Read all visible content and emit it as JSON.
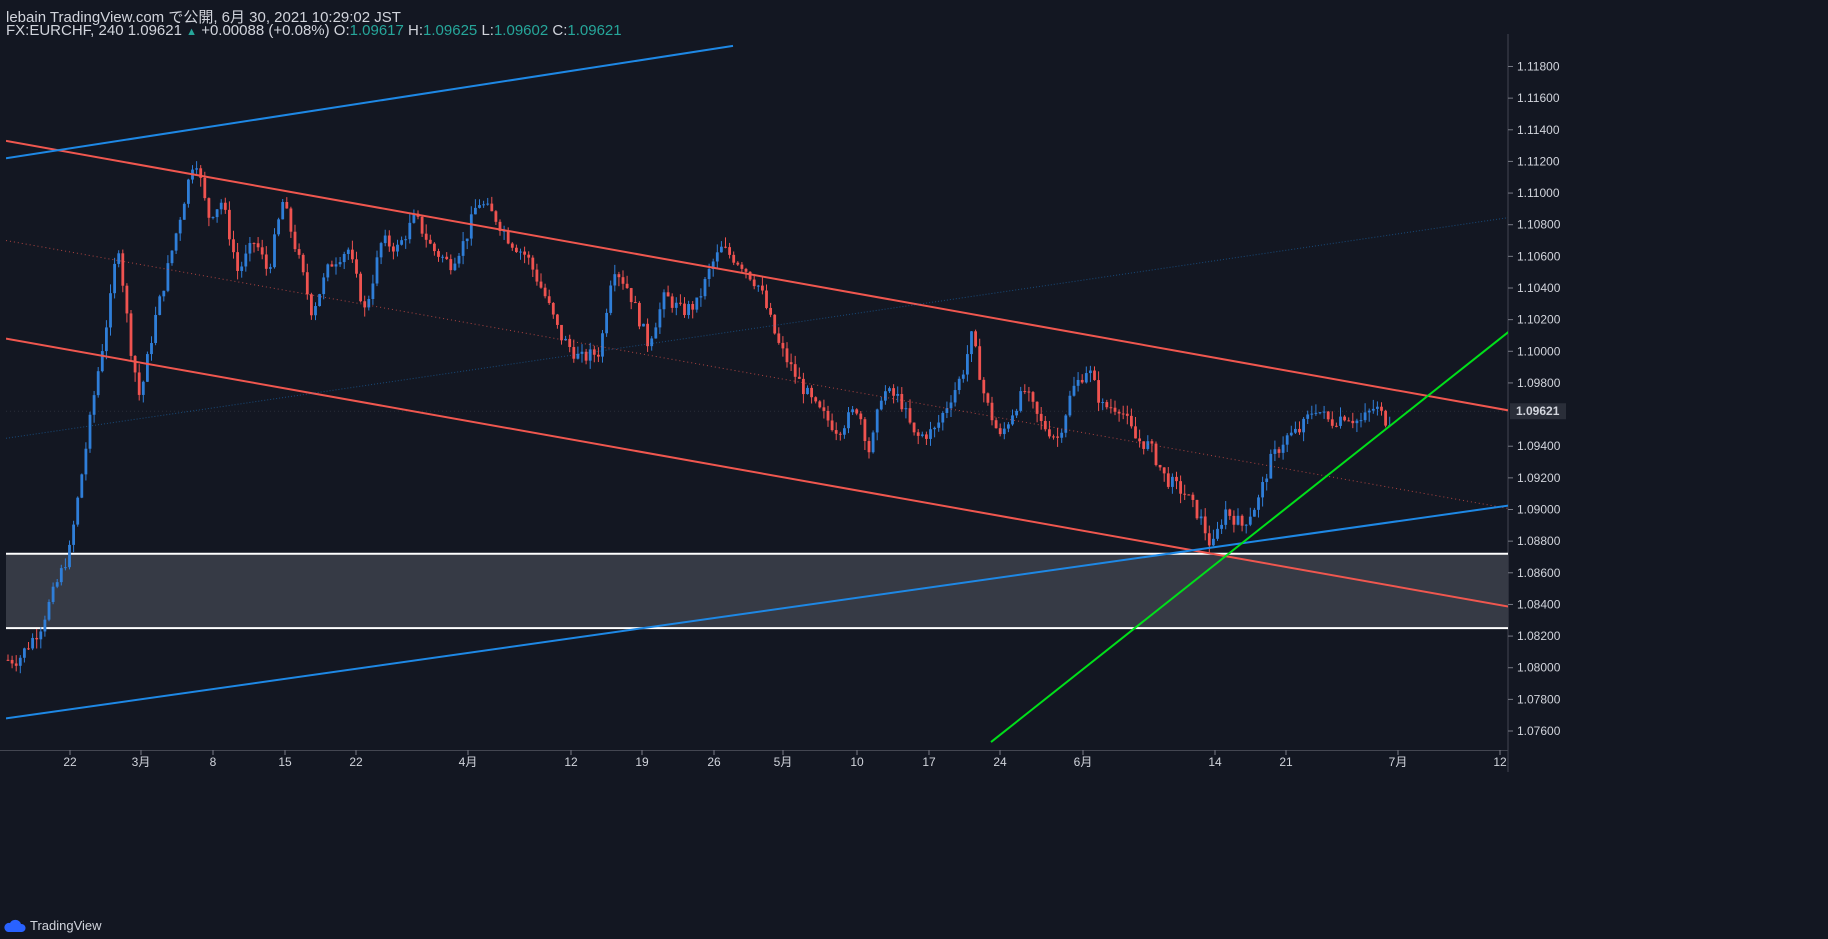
{
  "header": {
    "line1": "lebain TradingView.com で公開, 6月 30, 2021 10:29:02 JST",
    "symbol": "FX:EURCHF, 240",
    "last": "1.09621",
    "change": "+0.00088 (+0.08%)",
    "o_label": "O:",
    "o_value": "1.09617",
    "h_label": "H:",
    "h_value": "1.09625",
    "l_label": "L:",
    "l_value": "1.09602",
    "c_label": "C:",
    "c_value": "1.09621"
  },
  "footer": {
    "brand": "TradingView"
  },
  "colors": {
    "background": "#131722",
    "up": "#2f7ed8",
    "down": "#ef5350",
    "channel_red": "#f0574f",
    "trend_blue": "#1e88e5",
    "trend_green": "#00e01a",
    "zone": "#363a45",
    "zone_edge": "#ffffff",
    "price_tag": "#2a2e39"
  },
  "chart_data": {
    "type": "candlestick",
    "symbol": "FX:EURCHF",
    "timeframe": "240",
    "ylim": [
      1.0748,
      1.1198
    ],
    "y_ticks": [
      "1.11800",
      "1.11600",
      "1.11400",
      "1.11200",
      "1.11000",
      "1.10800",
      "1.10600",
      "1.10400",
      "1.10200",
      "1.10000",
      "1.09800",
      "1.09621",
      "1.09400",
      "1.09200",
      "1.09000",
      "1.08800",
      "1.08600",
      "1.08400",
      "1.08200",
      "1.08000",
      "1.07800",
      "1.07600"
    ],
    "last_price": "1.09621",
    "x_ticks": [
      "22",
      "3月",
      "8",
      "15",
      "22",
      "4月",
      "12",
      "19",
      "26",
      "5月",
      "10",
      "17",
      "24",
      "6月",
      "14",
      "21",
      "7月",
      "12"
    ],
    "path_anchors": [
      [
        0,
        1.0805
      ],
      [
        18,
        1.0805
      ],
      [
        40,
        1.0825
      ],
      [
        70,
        1.0875
      ],
      [
        96,
        1.098
      ],
      [
        110,
        1.103
      ],
      [
        118,
        1.107
      ],
      [
        130,
        1.1005
      ],
      [
        140,
        1.097
      ],
      [
        155,
        1.102
      ],
      [
        165,
        1.1045
      ],
      [
        180,
        1.1085
      ],
      [
        195,
        1.1125
      ],
      [
        208,
        1.1085
      ],
      [
        222,
        1.1095
      ],
      [
        238,
        1.105
      ],
      [
        255,
        1.107
      ],
      [
        268,
        1.105
      ],
      [
        283,
        1.1095
      ],
      [
        298,
        1.106
      ],
      [
        312,
        1.1025
      ],
      [
        330,
        1.1055
      ],
      [
        348,
        1.1065
      ],
      [
        365,
        1.1025
      ],
      [
        382,
        1.107
      ],
      [
        398,
        1.1065
      ],
      [
        415,
        1.1085
      ],
      [
        432,
        1.1065
      ],
      [
        450,
        1.1055
      ],
      [
        465,
        1.107
      ],
      [
        478,
        1.1095
      ],
      [
        495,
        1.1085
      ],
      [
        510,
        1.107
      ],
      [
        527,
        1.106
      ],
      [
        545,
        1.1035
      ],
      [
        560,
        1.101
      ],
      [
        580,
        1.0995
      ],
      [
        600,
        1.1
      ],
      [
        613,
        1.1055
      ],
      [
        628,
        1.104
      ],
      [
        648,
        1.1005
      ],
      [
        665,
        1.1035
      ],
      [
        682,
        1.1025
      ],
      [
        697,
        1.103
      ],
      [
        712,
        1.1055
      ],
      [
        722,
        1.1065
      ],
      [
        742,
        1.1055
      ],
      [
        760,
        1.104
      ],
      [
        778,
        1.1005
      ],
      [
        795,
        1.0985
      ],
      [
        815,
        1.0965
      ],
      [
        838,
        1.095
      ],
      [
        858,
        1.0965
      ],
      [
        870,
        1.0935
      ],
      [
        882,
        1.0975
      ],
      [
        900,
        1.097
      ],
      [
        915,
        1.0945
      ],
      [
        935,
        1.095
      ],
      [
        950,
        1.097
      ],
      [
        962,
        1.0985
      ],
      [
        972,
        1.101
      ],
      [
        985,
        1.097
      ],
      [
        1000,
        1.0945
      ],
      [
        1015,
        1.0965
      ],
      [
        1025,
        1.0975
      ],
      [
        1040,
        1.0955
      ],
      [
        1058,
        1.0945
      ],
      [
        1072,
        1.0975
      ],
      [
        1088,
        1.099
      ],
      [
        1102,
        1.0965
      ],
      [
        1120,
        1.0965
      ],
      [
        1135,
        1.0945
      ],
      [
        1150,
        1.094
      ],
      [
        1165,
        1.092
      ],
      [
        1185,
        1.091
      ],
      [
        1200,
        1.0895
      ],
      [
        1212,
        1.0875
      ],
      [
        1225,
        1.09
      ],
      [
        1242,
        1.089
      ],
      [
        1258,
        1.0905
      ],
      [
        1270,
        1.093
      ],
      [
        1285,
        1.0945
      ],
      [
        1300,
        1.095
      ],
      [
        1315,
        1.0965
      ],
      [
        1330,
        1.0955
      ],
      [
        1345,
        1.096
      ],
      [
        1360,
        1.0955
      ],
      [
        1375,
        1.0965
      ],
      [
        1388,
        1.0955
      ],
      [
        1393,
        1.0962
      ]
    ],
    "drawings": [
      {
        "kind": "channel-upper",
        "color": "red",
        "from": [
          0,
          1.1133
        ],
        "to": [
          1508,
          1.0962
        ]
      },
      {
        "kind": "channel-lower",
        "color": "red",
        "from": [
          0,
          1.1008
        ],
        "to": [
          1508,
          1.0838
        ]
      },
      {
        "kind": "channel-mid",
        "color": "red",
        "style": "dotted",
        "from": [
          0,
          1.107
        ],
        "to": [
          1508,
          1.09
        ]
      },
      {
        "kind": "trend-upper",
        "color": "blue",
        "from": [
          0,
          1.1122
        ],
        "to": [
          727,
          1.1193
        ]
      },
      {
        "kind": "trend-lower",
        "color": "blue",
        "from": [
          0,
          1.0768
        ],
        "to": [
          1508,
          1.0903
        ]
      },
      {
        "kind": "trend-mid",
        "color": "blue",
        "style": "faint",
        "from": [
          0,
          1.0945
        ],
        "to": [
          1508,
          1.1085
        ]
      },
      {
        "kind": "support",
        "color": "green",
        "from": [
          985,
          1.0753
        ],
        "to": [
          1508,
          1.1015
        ]
      }
    ],
    "zones": [
      {
        "from": 1.0825,
        "to": 1.0872,
        "label": ""
      }
    ]
  }
}
